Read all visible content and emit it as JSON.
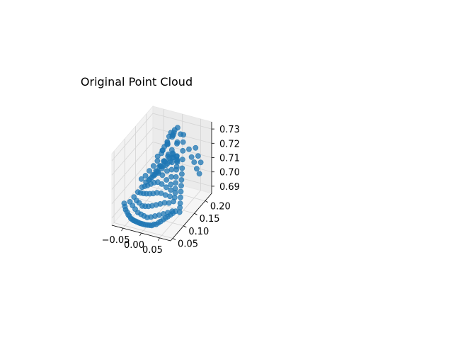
{
  "chart_data": {
    "type": "scatter",
    "title": "Original Point Cloud",
    "projection": "3d",
    "xlabel": "",
    "ylabel": "",
    "zlabel": "",
    "xlim": [
      -0.08,
      0.08
    ],
    "ylim": [
      0.04,
      0.23
    ],
    "zlim": [
      0.685,
      0.735
    ],
    "x_ticks": [
      -0.05,
      0.0,
      0.05
    ],
    "x_tick_labels": [
      "−0.05",
      "0.00",
      "0.05"
    ],
    "y_ticks": [
      0.05,
      0.1,
      0.15,
      0.2
    ],
    "y_tick_labels": [
      "0.05",
      "0.10",
      "0.15",
      "0.20"
    ],
    "z_ticks": [
      0.69,
      0.7,
      0.71,
      0.72,
      0.73
    ],
    "z_tick_labels": [
      "0.69",
      "0.70",
      "0.71",
      "0.72",
      "0.73"
    ],
    "grid": true,
    "series": [
      {
        "color": "#1f77b4",
        "marker": "circle",
        "x": [
          -0.07,
          -0.065,
          -0.06,
          -0.055,
          -0.05,
          -0.045,
          -0.04,
          -0.035,
          -0.03,
          -0.025,
          -0.02,
          -0.015,
          -0.01,
          -0.005,
          0.0,
          0.005,
          0.01,
          0.015,
          0.02,
          0.025,
          0.03,
          0.035,
          0.04,
          0.045,
          0.05,
          0.055,
          0.06,
          0.065,
          0.07,
          -0.06,
          -0.05,
          -0.04,
          -0.03,
          -0.02,
          -0.01,
          0.0,
          0.01,
          0.02,
          0.03,
          0.04,
          0.05,
          0.06,
          -0.055,
          -0.045,
          -0.035,
          -0.025,
          -0.015,
          -0.005,
          0.005,
          0.015,
          0.025,
          0.035,
          0.045,
          0.055,
          -0.05,
          -0.04,
          -0.03,
          -0.02,
          -0.01,
          0.0,
          0.01,
          0.02,
          0.03,
          0.04,
          0.05,
          -0.045,
          -0.035,
          -0.025,
          -0.015,
          -0.005,
          0.005,
          0.015,
          0.025,
          0.035,
          0.045,
          -0.04,
          -0.03,
          -0.02,
          -0.01,
          0.0,
          0.01,
          0.02,
          0.03,
          0.04,
          -0.035,
          -0.025,
          -0.015,
          -0.005,
          0.005,
          0.015,
          0.025,
          0.035,
          -0.03,
          -0.02,
          -0.01,
          0.0,
          0.01,
          0.02,
          0.03,
          -0.025,
          -0.015,
          -0.005,
          0.005,
          0.015,
          0.025,
          -0.02,
          -0.01,
          0.0,
          0.01,
          0.02,
          -0.015,
          -0.005,
          0.005,
          0.015,
          -0.01,
          0.0,
          0.01,
          -0.005,
          0.005,
          0.0,
          -0.02,
          -0.01,
          0.0,
          0.01,
          0.02,
          -0.015,
          -0.005,
          0.005,
          0.015,
          -0.01,
          0.0,
          0.01,
          0.0,
          0.005,
          -0.005,
          0.01,
          -0.01,
          0.015,
          0.02,
          0.025,
          0.03,
          0.035,
          0.04,
          0.045,
          0.05,
          0.055,
          0.06,
          0.065,
          0.07,
          0.075,
          0.03,
          0.04,
          0.05,
          0.06,
          0.07,
          0.045,
          0.055,
          0.065,
          -0.06,
          -0.065,
          -0.055,
          -0.07,
          -0.05,
          -0.045,
          -0.04,
          -0.035,
          -0.03,
          -0.025
        ],
        "y": [
          0.08,
          0.075,
          0.07,
          0.068,
          0.065,
          0.062,
          0.06,
          0.058,
          0.056,
          0.055,
          0.054,
          0.053,
          0.052,
          0.052,
          0.052,
          0.052,
          0.053,
          0.054,
          0.055,
          0.056,
          0.058,
          0.06,
          0.062,
          0.065,
          0.068,
          0.07,
          0.073,
          0.076,
          0.08,
          0.09,
          0.085,
          0.08,
          0.076,
          0.073,
          0.07,
          0.068,
          0.068,
          0.07,
          0.072,
          0.075,
          0.078,
          0.082,
          0.1,
          0.095,
          0.09,
          0.087,
          0.084,
          0.082,
          0.082,
          0.084,
          0.086,
          0.089,
          0.092,
          0.096,
          0.11,
          0.105,
          0.101,
          0.098,
          0.096,
          0.095,
          0.096,
          0.098,
          0.101,
          0.105,
          0.11,
          0.12,
          0.116,
          0.112,
          0.11,
          0.108,
          0.108,
          0.11,
          0.113,
          0.117,
          0.121,
          0.13,
          0.126,
          0.123,
          0.121,
          0.12,
          0.121,
          0.123,
          0.126,
          0.13,
          0.14,
          0.137,
          0.134,
          0.132,
          0.132,
          0.134,
          0.137,
          0.14,
          0.15,
          0.147,
          0.145,
          0.144,
          0.145,
          0.147,
          0.15,
          0.16,
          0.157,
          0.155,
          0.155,
          0.157,
          0.16,
          0.17,
          0.167,
          0.166,
          0.167,
          0.17,
          0.18,
          0.178,
          0.178,
          0.18,
          0.19,
          0.188,
          0.19,
          0.198,
          0.198,
          0.205,
          0.15,
          0.155,
          0.16,
          0.165,
          0.17,
          0.165,
          0.17,
          0.175,
          0.18,
          0.18,
          0.185,
          0.19,
          0.195,
          0.2,
          0.2,
          0.205,
          0.205,
          0.21,
          0.2,
          0.19,
          0.18,
          0.17,
          0.16,
          0.15,
          0.14,
          0.13,
          0.12,
          0.11,
          0.1,
          0.09,
          0.21,
          0.205,
          0.2,
          0.195,
          0.19,
          0.215,
          0.21,
          0.205,
          0.18,
          0.17,
          0.19,
          0.16,
          0.2,
          0.21,
          0.215,
          0.22,
          0.22,
          0.22
        ],
        "z": [
          0.694,
          0.693,
          0.692,
          0.691,
          0.69,
          0.69,
          0.689,
          0.689,
          0.689,
          0.689,
          0.689,
          0.689,
          0.689,
          0.689,
          0.689,
          0.689,
          0.689,
          0.689,
          0.689,
          0.69,
          0.69,
          0.691,
          0.692,
          0.693,
          0.694,
          0.695,
          0.696,
          0.697,
          0.698,
          0.694,
          0.693,
          0.692,
          0.691,
          0.691,
          0.691,
          0.691,
          0.692,
          0.693,
          0.694,
          0.695,
          0.696,
          0.697,
          0.696,
          0.695,
          0.695,
          0.694,
          0.695,
          0.696,
          0.697,
          0.698,
          0.699,
          0.7,
          0.7,
          0.701,
          0.698,
          0.699,
          0.7,
          0.701,
          0.702,
          0.703,
          0.704,
          0.704,
          0.703,
          0.702,
          0.701,
          0.7,
          0.702,
          0.704,
          0.706,
          0.708,
          0.709,
          0.708,
          0.706,
          0.704,
          0.702,
          0.702,
          0.705,
          0.708,
          0.711,
          0.713,
          0.712,
          0.709,
          0.706,
          0.703,
          0.703,
          0.707,
          0.711,
          0.715,
          0.716,
          0.713,
          0.709,
          0.705,
          0.704,
          0.708,
          0.713,
          0.717,
          0.716,
          0.712,
          0.707,
          0.705,
          0.71,
          0.715,
          0.719,
          0.715,
          0.71,
          0.706,
          0.712,
          0.718,
          0.716,
          0.71,
          0.707,
          0.713,
          0.717,
          0.712,
          0.708,
          0.714,
          0.709,
          0.71,
          0.709,
          0.71,
          0.718,
          0.722,
          0.726,
          0.722,
          0.717,
          0.72,
          0.725,
          0.729,
          0.724,
          0.722,
          0.728,
          0.723,
          0.73,
          0.731,
          0.727,
          0.726,
          0.724,
          0.725,
          0.722,
          0.718,
          0.714,
          0.71,
          0.708,
          0.706,
          0.704,
          0.702,
          0.7,
          0.698,
          0.697,
          0.696,
          0.716,
          0.712,
          0.71,
          0.707,
          0.705,
          0.717,
          0.713,
          0.71,
          0.7,
          0.698,
          0.702,
          0.697,
          0.704,
          0.708,
          0.712,
          0.715,
          0.719,
          0.722
        ]
      }
    ]
  }
}
